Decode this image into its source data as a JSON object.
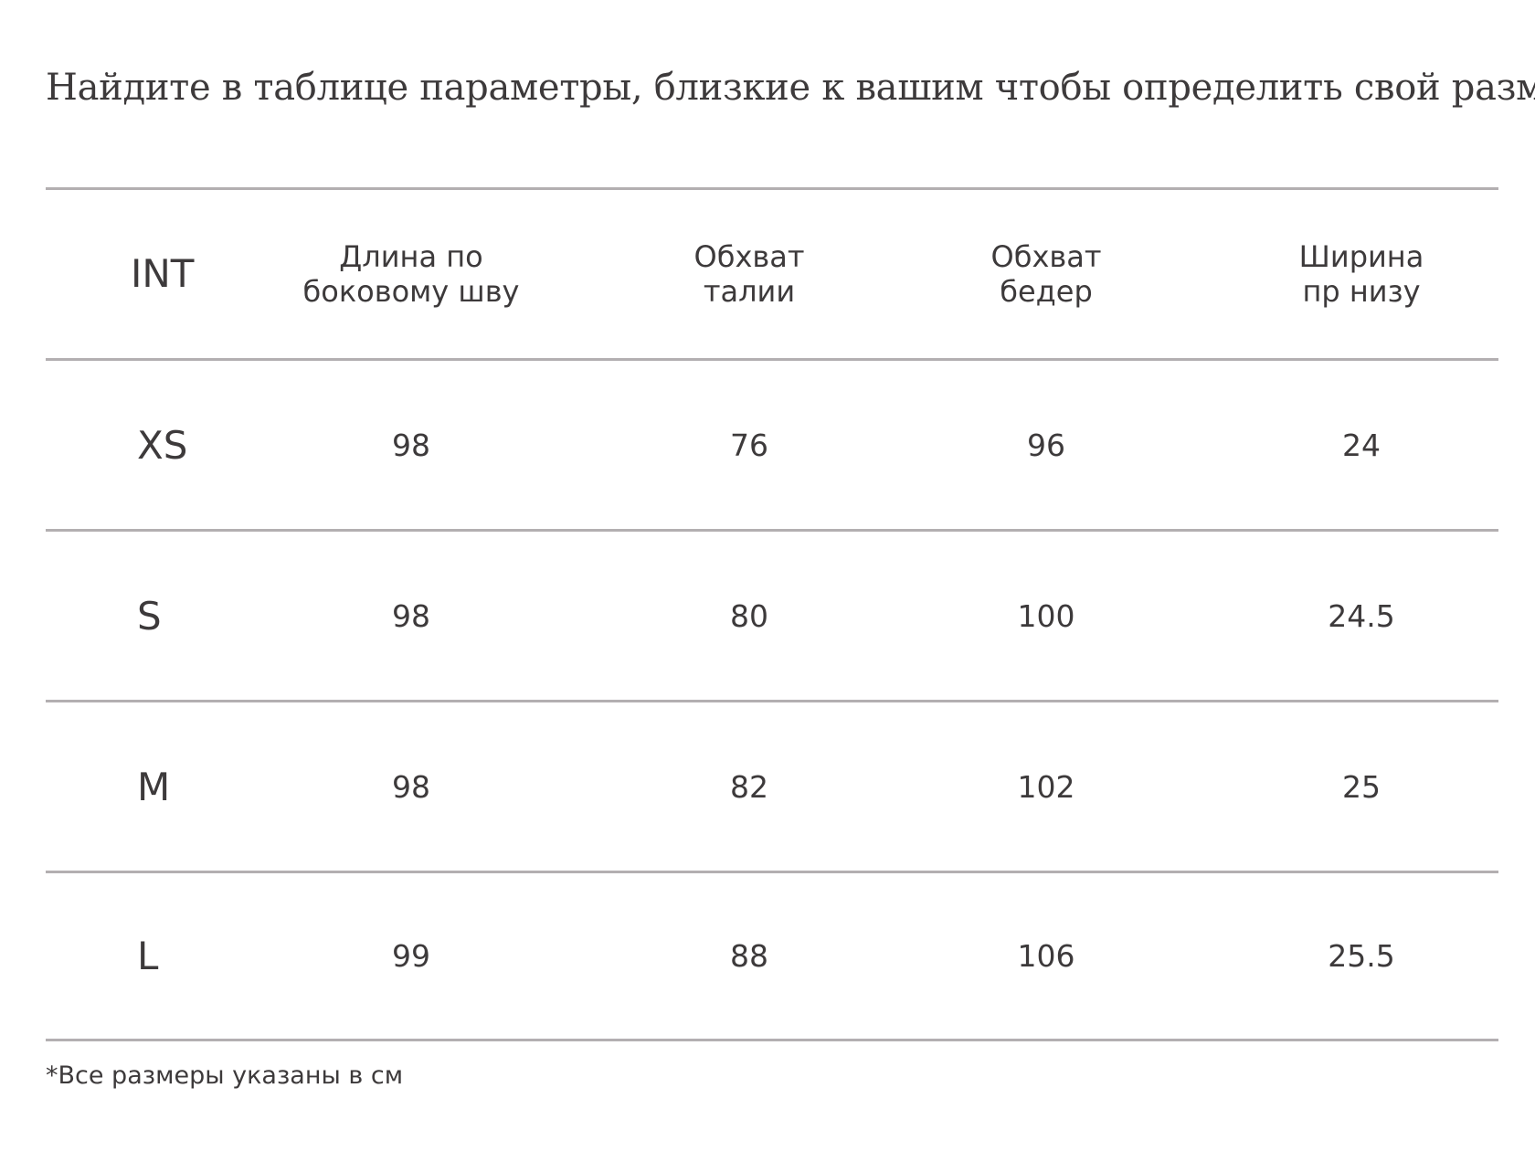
{
  "heading": "Найдите в таблице параметры, близкие к вашим чтобы определить свой размер.",
  "table": {
    "headers": [
      "INT",
      "Длина по\nбоковому шву",
      "Обхват\nталии",
      "Обхват\nбедер",
      "Ширина\nпр низу"
    ],
    "rows": [
      [
        "XS",
        "98",
        "76",
        "96",
        "24"
      ],
      [
        "S",
        "98",
        "80",
        "100",
        "24.5"
      ],
      [
        "M",
        "98",
        "82",
        "102",
        "25"
      ],
      [
        "L",
        "99",
        "88",
        "106",
        "25.5"
      ]
    ]
  },
  "note": "*Все размеры указаны в см",
  "colors": {
    "text": "#3d3a3b",
    "divider": "#b3afb1",
    "background": "#ffffff"
  }
}
